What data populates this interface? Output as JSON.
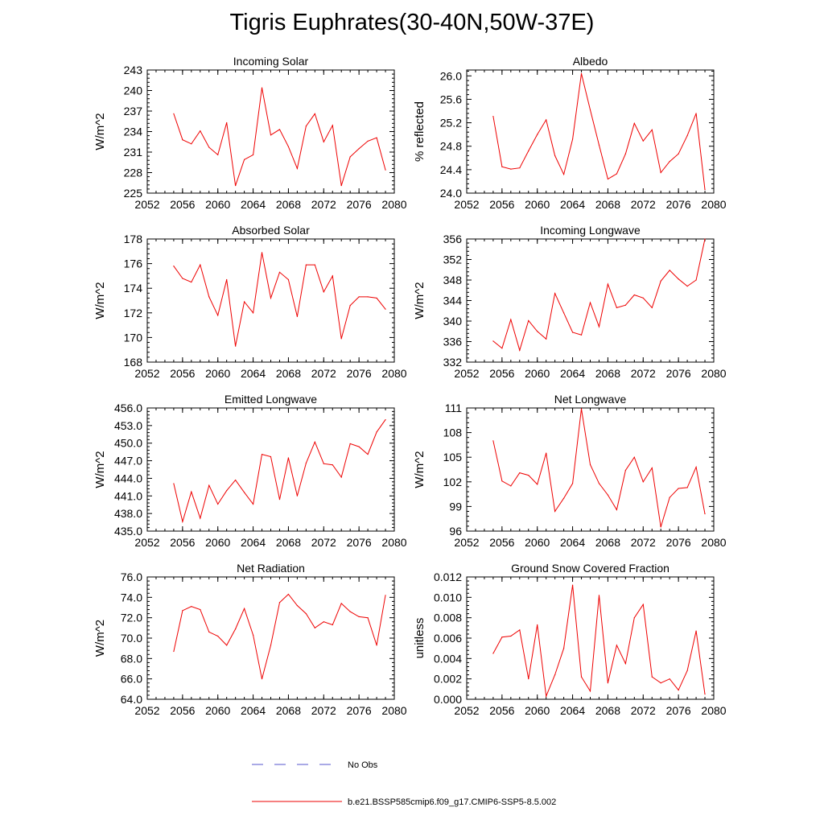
{
  "title": "Tigris Euphrates(30-40N,50W-37E)",
  "legend": {
    "items": [
      {
        "label": "No Obs",
        "color": "#5555cc",
        "dash": true
      },
      {
        "label": "b.e21.BSSP585cmip6.f09_g17.CMIP6-SSP5-8.5.002",
        "color": "#ee0000",
        "dash": false
      }
    ]
  },
  "line_color": "#ee0000",
  "chart_data": [
    {
      "type": "line",
      "title": "Incoming Solar",
      "ylabel": "W/m^2",
      "xlabel": "",
      "xlim": [
        2052,
        2080
      ],
      "ylim": [
        225,
        243
      ],
      "xticks": [
        "2052",
        "2056",
        "2060",
        "2064",
        "2068",
        "2072",
        "2076",
        "2080"
      ],
      "yticks": [
        "225",
        "228",
        "231",
        "234",
        "237",
        "240",
        "243"
      ],
      "x": [
        2055,
        2056,
        2057,
        2058,
        2059,
        2060,
        2061,
        2062,
        2063,
        2064,
        2065,
        2066,
        2067,
        2068,
        2069,
        2070,
        2071,
        2072,
        2073,
        2074,
        2075,
        2076,
        2077,
        2078,
        2079
      ],
      "values": [
        236.6,
        232.8,
        232.2,
        234.1,
        231.7,
        230.6,
        235.3,
        226.1,
        229.9,
        230.6,
        240.4,
        233.5,
        234.3,
        231.8,
        228.6,
        234.8,
        236.6,
        232.5,
        234.9,
        226.1,
        230.3,
        231.5,
        232.6,
        233.1,
        228.4
      ]
    },
    {
      "type": "line",
      "title": "Albedo",
      "ylabel": "% reflected",
      "xlabel": "",
      "xlim": [
        2052,
        2080
      ],
      "ylim": [
        24.0,
        26.1
      ],
      "xticks": [
        "2052",
        "2056",
        "2060",
        "2064",
        "2068",
        "2072",
        "2076",
        "2080"
      ],
      "yticks": [
        "24.0",
        "24.4",
        "24.8",
        "25.2",
        "25.6",
        "26.0"
      ],
      "x": [
        2055,
        2056,
        2057,
        2058,
        2059,
        2060,
        2061,
        2062,
        2063,
        2064,
        2065,
        2066,
        2067,
        2068,
        2069,
        2070,
        2071,
        2072,
        2073,
        2074,
        2075,
        2076,
        2077,
        2078,
        2079
      ],
      "values": [
        25.31,
        24.45,
        24.41,
        24.43,
        24.72,
        25.0,
        25.25,
        24.64,
        24.32,
        24.92,
        26.04,
        25.42,
        24.82,
        24.24,
        24.33,
        24.67,
        25.19,
        24.89,
        25.08,
        24.35,
        24.54,
        24.67,
        24.98,
        25.36,
        24.06
      ]
    },
    {
      "type": "line",
      "title": "Absorbed Solar",
      "ylabel": "W/m^2",
      "xlabel": "",
      "xlim": [
        2052,
        2080
      ],
      "ylim": [
        168,
        178
      ],
      "xticks": [
        "2052",
        "2056",
        "2060",
        "2064",
        "2068",
        "2072",
        "2076",
        "2080"
      ],
      "yticks": [
        "168",
        "170",
        "172",
        "174",
        "176",
        "178"
      ],
      "x": [
        2055,
        2056,
        2057,
        2058,
        2059,
        2060,
        2061,
        2062,
        2063,
        2064,
        2065,
        2066,
        2067,
        2068,
        2069,
        2070,
        2071,
        2072,
        2073,
        2074,
        2075,
        2076,
        2077,
        2078,
        2079
      ],
      "values": [
        175.8,
        174.8,
        174.5,
        175.9,
        173.3,
        171.8,
        174.7,
        169.3,
        172.9,
        172.0,
        176.9,
        173.2,
        175.3,
        174.7,
        171.7,
        175.9,
        175.9,
        173.7,
        175.0,
        169.9,
        172.6,
        173.3,
        173.3,
        173.2,
        172.3
      ]
    },
    {
      "type": "line",
      "title": "Incoming Longwave",
      "ylabel": "W/m^2",
      "xlabel": "",
      "xlim": [
        2052,
        2080
      ],
      "ylim": [
        332,
        356
      ],
      "xticks": [
        "2052",
        "2056",
        "2060",
        "2064",
        "2068",
        "2072",
        "2076",
        "2080"
      ],
      "yticks": [
        "332",
        "336",
        "340",
        "344",
        "348",
        "352",
        "356"
      ],
      "x": [
        2055,
        2056,
        2057,
        2058,
        2059,
        2060,
        2061,
        2062,
        2063,
        2064,
        2065,
        2066,
        2067,
        2068,
        2069,
        2070,
        2071,
        2072,
        2073,
        2074,
        2075,
        2076,
        2077,
        2078,
        2079
      ],
      "values": [
        336.1,
        334.7,
        340.3,
        334.3,
        340.1,
        338.0,
        336.5,
        345.4,
        341.6,
        337.8,
        337.3,
        343.6,
        338.9,
        347.2,
        342.6,
        343.1,
        345.1,
        344.5,
        342.6,
        347.8,
        349.9,
        348.2,
        346.8,
        348.0,
        356.0
      ]
    },
    {
      "type": "line",
      "title": "Emitted Longwave",
      "ylabel": "W/m^2",
      "xlabel": "",
      "xlim": [
        2052,
        2080
      ],
      "ylim": [
        435,
        456
      ],
      "xticks": [
        "2052",
        "2056",
        "2060",
        "2064",
        "2068",
        "2072",
        "2076",
        "2080"
      ],
      "yticks": [
        "435.0",
        "438.0",
        "441.0",
        "444.0",
        "447.0",
        "450.0",
        "453.0",
        "456.0"
      ],
      "x": [
        2055,
        2056,
        2057,
        2058,
        2059,
        2060,
        2061,
        2062,
        2063,
        2064,
        2065,
        2066,
        2067,
        2068,
        2069,
        2070,
        2071,
        2072,
        2073,
        2074,
        2075,
        2076,
        2077,
        2078,
        2079
      ],
      "values": [
        443.1,
        436.6,
        441.7,
        437.2,
        442.8,
        439.6,
        441.9,
        443.7,
        441.6,
        439.6,
        448.1,
        447.7,
        440.4,
        447.5,
        441.0,
        446.6,
        450.2,
        446.5,
        446.3,
        444.2,
        449.9,
        449.4,
        448.1,
        451.9,
        454.0
      ]
    },
    {
      "type": "line",
      "title": "Net Longwave",
      "ylabel": "W/m^2",
      "xlabel": "",
      "xlim": [
        2052,
        2080
      ],
      "ylim": [
        96,
        111
      ],
      "xticks": [
        "2052",
        "2056",
        "2060",
        "2064",
        "2068",
        "2072",
        "2076",
        "2080"
      ],
      "yticks": [
        "96",
        "99",
        "102",
        "105",
        "108",
        "111"
      ],
      "x": [
        2055,
        2056,
        2057,
        2058,
        2059,
        2060,
        2061,
        2062,
        2063,
        2064,
        2065,
        2066,
        2067,
        2068,
        2069,
        2070,
        2071,
        2072,
        2073,
        2074,
        2075,
        2076,
        2077,
        2078,
        2079
      ],
      "values": [
        107.0,
        102.1,
        101.5,
        103.1,
        102.8,
        101.7,
        105.5,
        98.4,
        100.0,
        101.8,
        110.9,
        104.1,
        101.8,
        100.4,
        98.6,
        103.4,
        105.0,
        102.0,
        103.7,
        96.5,
        100.1,
        101.2,
        101.3,
        103.8,
        98.1
      ]
    },
    {
      "type": "line",
      "title": "Net Radiation",
      "ylabel": "W/m^2",
      "xlabel": "",
      "xlim": [
        2052,
        2080
      ],
      "ylim": [
        64,
        76
      ],
      "xticks": [
        "2052",
        "2056",
        "2060",
        "2064",
        "2068",
        "2072",
        "2076",
        "2080"
      ],
      "yticks": [
        "64.0",
        "66.0",
        "68.0",
        "70.0",
        "72.0",
        "74.0",
        "76.0"
      ],
      "x": [
        2055,
        2056,
        2057,
        2058,
        2059,
        2060,
        2061,
        2062,
        2063,
        2064,
        2065,
        2066,
        2067,
        2068,
        2069,
        2070,
        2071,
        2072,
        2073,
        2074,
        2075,
        2076,
        2077,
        2078,
        2079
      ],
      "values": [
        68.7,
        72.7,
        73.1,
        72.8,
        70.6,
        70.2,
        69.3,
        70.9,
        72.9,
        70.3,
        66.0,
        69.3,
        73.5,
        74.3,
        73.2,
        72.4,
        71.0,
        71.6,
        71.3,
        73.4,
        72.6,
        72.1,
        72.0,
        69.3,
        74.2
      ]
    },
    {
      "type": "line",
      "title": "Ground Snow Covered Fraction",
      "ylabel": "unitless",
      "xlabel": "",
      "xlim": [
        2052,
        2080
      ],
      "ylim": [
        0,
        0.012
      ],
      "xticks": [
        "2052",
        "2056",
        "2060",
        "2064",
        "2068",
        "2072",
        "2076",
        "2080"
      ],
      "yticks": [
        "0.000",
        "0.002",
        "0.004",
        "0.006",
        "0.008",
        "0.010",
        "0.012"
      ],
      "x": [
        2055,
        2056,
        2057,
        2058,
        2059,
        2060,
        2061,
        2062,
        2063,
        2064,
        2065,
        2066,
        2067,
        2068,
        2069,
        2070,
        2071,
        2072,
        2073,
        2074,
        2075,
        2076,
        2077,
        2078,
        2079
      ],
      "values": [
        0.0045,
        0.0061,
        0.0062,
        0.0068,
        0.002,
        0.0073,
        0.0003,
        0.0024,
        0.005,
        0.0112,
        0.0022,
        0.0008,
        0.0102,
        0.0016,
        0.0053,
        0.0035,
        0.008,
        0.0093,
        0.0022,
        0.0016,
        0.002,
        0.0009,
        0.0028,
        0.0067,
        0.0005
      ]
    }
  ]
}
